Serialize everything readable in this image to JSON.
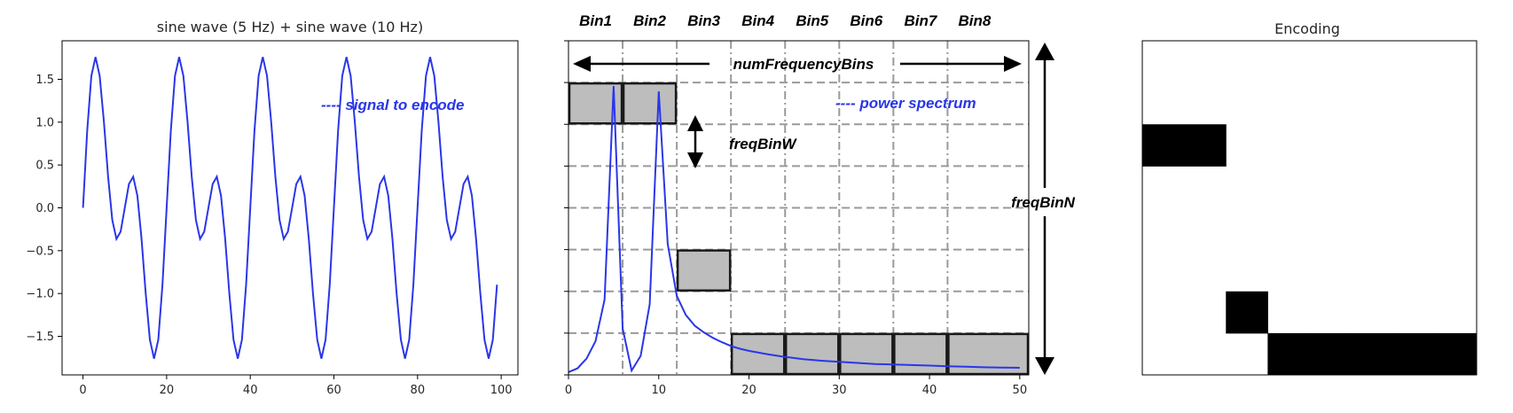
{
  "colors": {
    "signal": "#2a36e8",
    "spectrum": "#2a36e8",
    "bin_fill": "#bdbdbd",
    "bin_stroke": "#1a1a1a",
    "grid": "#9a9a9a",
    "encoding": "#000000"
  },
  "annotations": {
    "signal_legend": "---- signal to encode",
    "spectrum_legend": "---- power spectrum",
    "num_frequency_bins": "numFrequencyBins",
    "freq_bin_w": "freqBinW",
    "freq_bin_n": "freqBinN"
  },
  "chart_data": [
    {
      "type": "line",
      "title": "sine wave (5 Hz) + sine wave (10 Hz)",
      "xlim": [
        -5,
        104
      ],
      "ylim": [
        -1.95,
        1.95
      ],
      "xticks": [
        0,
        20,
        40,
        60,
        80,
        100
      ],
      "yticks": [
        -1.5,
        -1.0,
        -0.5,
        0.0,
        0.5,
        1.0,
        1.5
      ],
      "ytick_labels": [
        "−1.5",
        "−1.0",
        "−0.5",
        "0.0",
        "0.5",
        "1.0",
        "1.5"
      ],
      "series": [
        {
          "formula": "sin(2*pi*5*t) + sin(2*pi*10*t), t = x/100",
          "x_start": 0,
          "x_end": 99,
          "step": 1
        }
      ]
    },
    {
      "type": "line",
      "xlim": [
        0,
        51
      ],
      "xticks": [
        0,
        10,
        20,
        30,
        40,
        50
      ],
      "bin_labels": [
        "Bin1",
        "Bin2",
        "Bin3",
        "Bin4",
        "Bin5",
        "Bin6",
        "Bin7",
        "Bin8"
      ],
      "bin_edges": [
        0,
        6,
        12,
        18,
        24,
        30,
        36,
        42,
        51
      ],
      "levels": 8,
      "bin_levels": [
        6,
        6,
        2,
        0,
        0,
        0,
        0,
        0
      ],
      "bin_level_span": 1,
      "series": [
        {
          "x": [
            0,
            1,
            2,
            3,
            4,
            5,
            6,
            7,
            8,
            9,
            10,
            11,
            12,
            13,
            14,
            15,
            16,
            17,
            18,
            19,
            20,
            22,
            24,
            26,
            28,
            30,
            32,
            34,
            36,
            38,
            40,
            42,
            44,
            46,
            48,
            50
          ],
          "y": [
            0.05,
            0.12,
            0.3,
            0.62,
            1.38,
            5.3,
            0.85,
            0.08,
            0.35,
            1.3,
            5.2,
            2.4,
            1.45,
            1.1,
            0.9,
            0.78,
            0.68,
            0.6,
            0.53,
            0.48,
            0.44,
            0.38,
            0.33,
            0.29,
            0.26,
            0.24,
            0.22,
            0.2,
            0.19,
            0.18,
            0.17,
            0.16,
            0.15,
            0.14,
            0.135,
            0.13
          ]
        }
      ]
    },
    {
      "type": "heatmap",
      "title": "Encoding",
      "rows": 8,
      "cols": 8,
      "active": [
        [
          2,
          0
        ],
        [
          2,
          1
        ],
        [
          6,
          2
        ],
        [
          7,
          3
        ],
        [
          7,
          4
        ],
        [
          7,
          5
        ],
        [
          7,
          6
        ],
        [
          7,
          7
        ]
      ]
    }
  ]
}
